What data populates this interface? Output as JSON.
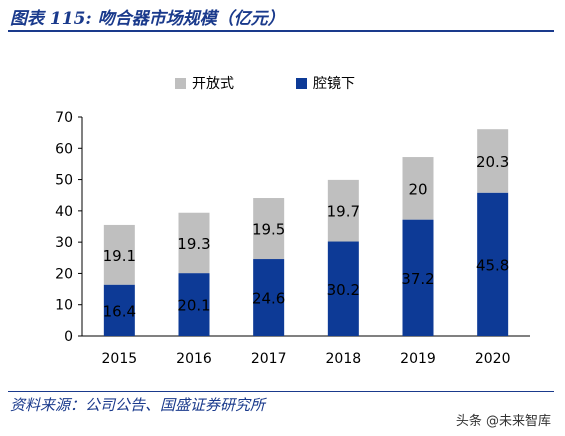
{
  "figure": {
    "title": "图表 115:  吻合器市场规模（亿元）",
    "source": "资料来源：公司公告、国盛证券研究所",
    "watermark": "头条 @未来智库"
  },
  "colors": {
    "title_blue": "#1a3a8c",
    "laparoscopic": "#0d3a96",
    "open": "#bfbfbf"
  },
  "chart_data": {
    "type": "bar",
    "stacked": true,
    "categories": [
      "2015",
      "2016",
      "2017",
      "2018",
      "2019",
      "2020"
    ],
    "series": [
      {
        "name": "腔镜下",
        "values": [
          16.4,
          20.1,
          24.6,
          30.2,
          37.2,
          45.8
        ],
        "color": "#0d3a96"
      },
      {
        "name": "开放式",
        "values": [
          19.1,
          19.3,
          19.5,
          19.7,
          20,
          20.3
        ],
        "color": "#bfbfbf"
      }
    ],
    "ylim": [
      0,
      70
    ],
    "yticks": [
      0,
      10,
      20,
      30,
      40,
      50,
      60,
      70
    ],
    "legend": [
      "开放式",
      "腔镜下"
    ],
    "legend_position": "top",
    "grid": false
  }
}
